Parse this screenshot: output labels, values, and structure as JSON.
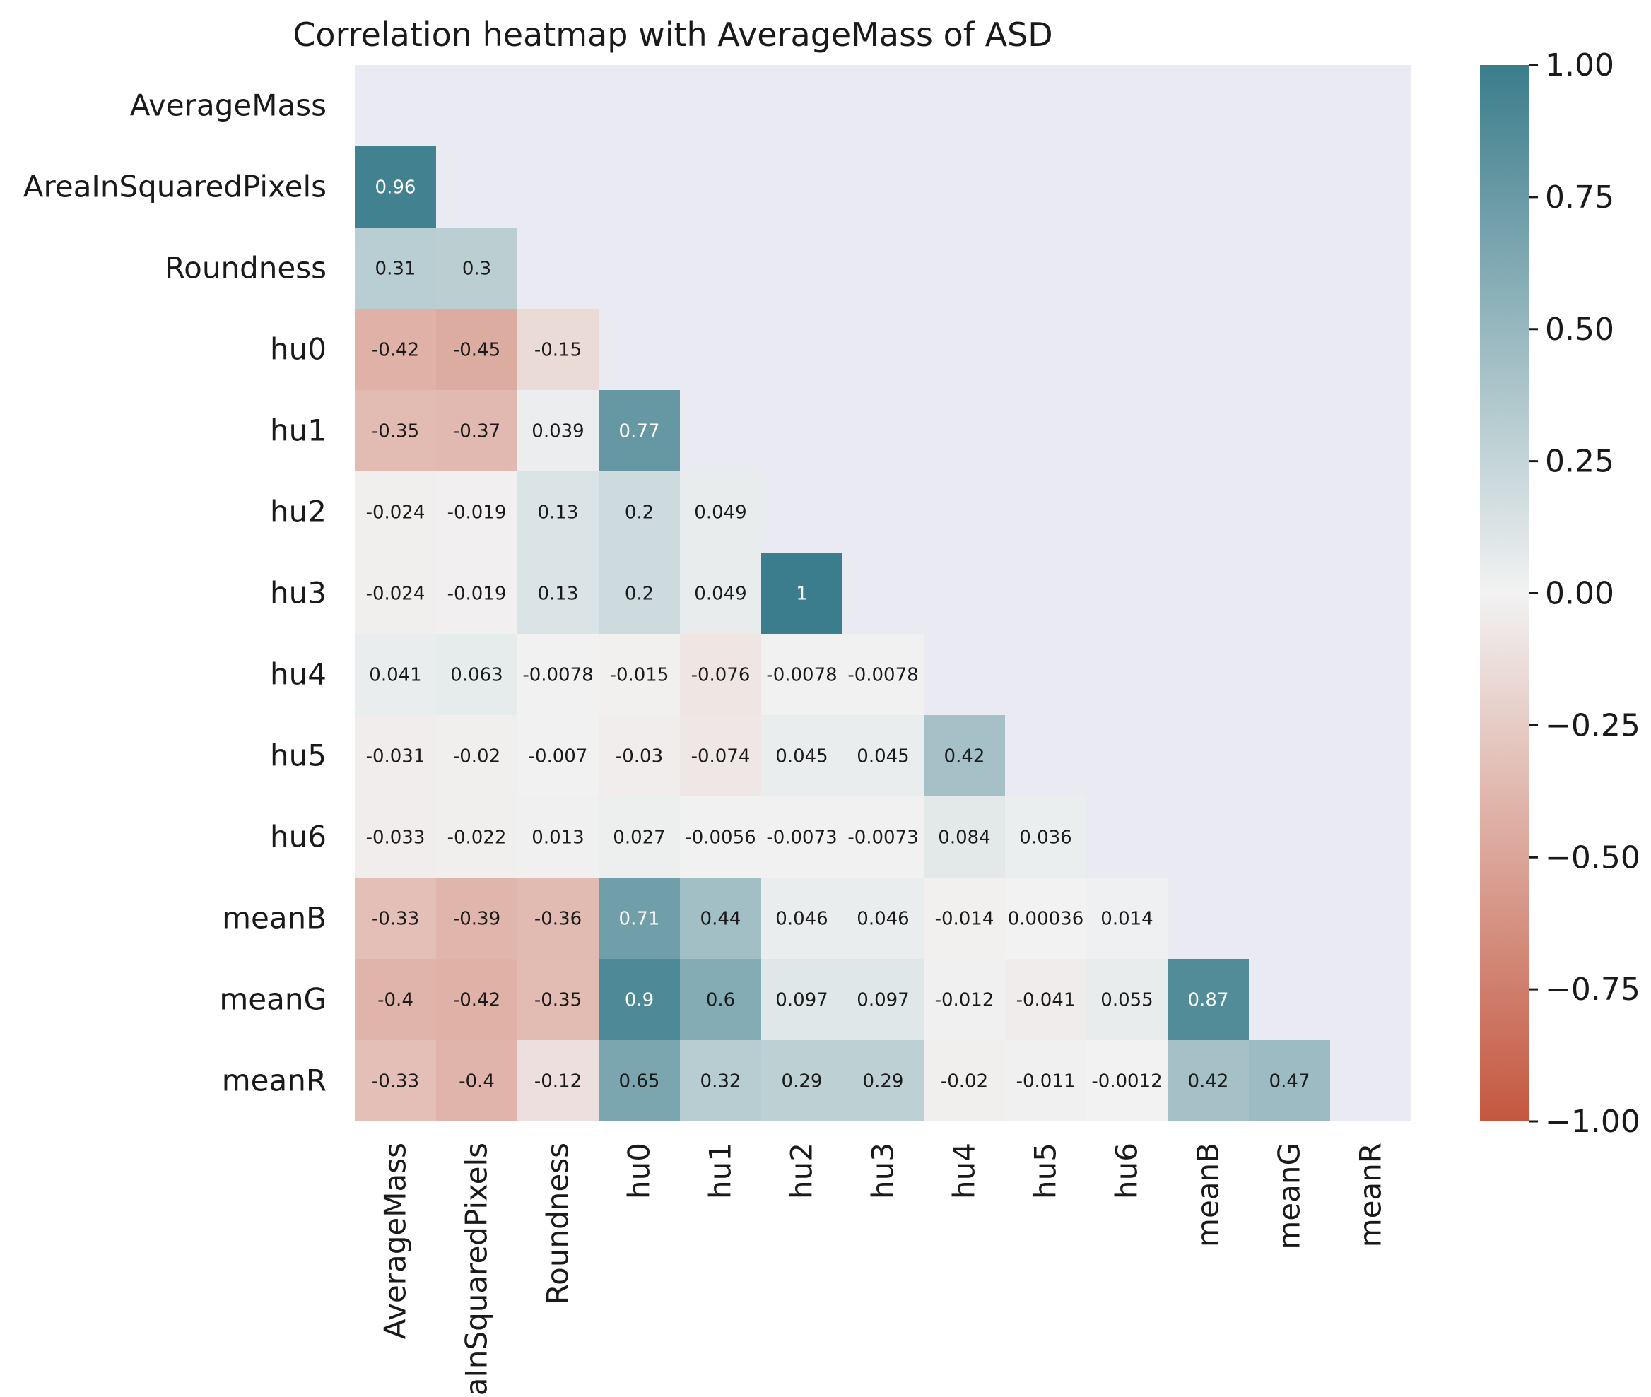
{
  "chart_data": {
    "type": "heatmap",
    "title": "Correlation heatmap with AverageMass of ASD",
    "variables": [
      "AverageMass",
      "AreaInSquaredPixels",
      "Roundness",
      "hu0",
      "hu1",
      "hu2",
      "hu3",
      "hu4",
      "hu5",
      "hu6",
      "meanB",
      "meanG",
      "meanR"
    ],
    "mask": "upper-triangle-including-diagonal",
    "rows": [
      {
        "name": "AverageMass",
        "values": []
      },
      {
        "name": "AreaInSquaredPixels",
        "values": [
          0.96
        ]
      },
      {
        "name": "Roundness",
        "values": [
          0.31,
          0.3
        ]
      },
      {
        "name": "hu0",
        "values": [
          -0.42,
          -0.45,
          -0.15
        ]
      },
      {
        "name": "hu1",
        "values": [
          -0.35,
          -0.37,
          0.039,
          0.77
        ]
      },
      {
        "name": "hu2",
        "values": [
          -0.024,
          -0.019,
          0.13,
          0.2,
          0.049
        ]
      },
      {
        "name": "hu3",
        "values": [
          -0.024,
          -0.019,
          0.13,
          0.2,
          0.049,
          1
        ]
      },
      {
        "name": "hu4",
        "values": [
          0.041,
          0.063,
          -0.0078,
          -0.015,
          -0.076,
          -0.0078,
          -0.0078
        ]
      },
      {
        "name": "hu5",
        "values": [
          -0.031,
          -0.02,
          -0.007,
          -0.03,
          -0.074,
          0.045,
          0.045,
          0.42
        ]
      },
      {
        "name": "hu6",
        "values": [
          -0.033,
          -0.022,
          0.013,
          0.027,
          -0.0056,
          -0.0073,
          -0.0073,
          0.084,
          0.036
        ]
      },
      {
        "name": "meanB",
        "values": [
          -0.33,
          -0.39,
          -0.36,
          0.71,
          0.44,
          0.046,
          0.046,
          -0.014,
          0.00036,
          0.014
        ]
      },
      {
        "name": "meanG",
        "values": [
          -0.4,
          -0.42,
          -0.35,
          0.9,
          0.6,
          0.097,
          0.097,
          -0.012,
          -0.041,
          0.055,
          0.87
        ]
      },
      {
        "name": "meanR",
        "values": [
          -0.33,
          -0.4,
          -0.12,
          0.65,
          0.32,
          0.29,
          0.29,
          -0.02,
          -0.011,
          -0.0012,
          0.42,
          0.47
        ]
      }
    ],
    "colorbar": {
      "range": [
        -1,
        1
      ],
      "ticks": [
        1.0,
        0.75,
        0.5,
        0.25,
        0.0,
        -0.25,
        -0.5,
        -0.75,
        -1.0
      ],
      "tick_labels": [
        "1.00",
        "0.75",
        "0.50",
        "0.25",
        "0.00",
        "−0.25",
        "−0.50",
        "−0.75",
        "−1.00"
      ],
      "colors": {
        "negative": "#c4573f",
        "neutral": "#f2f2f2",
        "positive": "#3b7d8c"
      }
    },
    "background_color": "#eaeaf2"
  }
}
